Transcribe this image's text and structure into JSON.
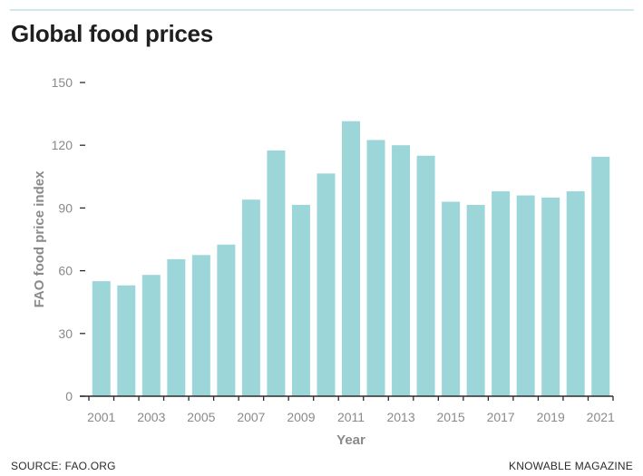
{
  "page": {
    "title": "Global food prices",
    "source": "SOURCE: FAO.ORG",
    "credit": "KNOWABLE MAGAZINE"
  },
  "colors": {
    "bar": "#9dd6d9",
    "axis": "#2b2b2b",
    "tick_text": "#8a8a8a",
    "label_text": "#8a8a8a",
    "rule": "#cfe9eb"
  },
  "chart_data": {
    "type": "bar",
    "title": "Global food prices",
    "xlabel": "Year",
    "ylabel": "FAO food price index",
    "ylim": [
      0,
      150
    ],
    "yticks": [
      0,
      30,
      60,
      90,
      120,
      150
    ],
    "grid": false,
    "categories": [
      "2001",
      "2002",
      "2003",
      "2004",
      "2005",
      "2006",
      "2007",
      "2008",
      "2009",
      "2010",
      "2011",
      "2012",
      "2013",
      "2014",
      "2015",
      "2016",
      "2017",
      "2018",
      "2019",
      "2020",
      "2021"
    ],
    "tick_labels_shown": [
      "2001",
      "2003",
      "2005",
      "2007",
      "2009",
      "2011",
      "2013",
      "2015",
      "2017",
      "2019",
      "2021"
    ],
    "values": [
      55,
      53,
      58,
      65.5,
      67.5,
      72.5,
      94,
      117.5,
      91.5,
      106.5,
      131.5,
      122.5,
      120,
      115,
      93,
      91.5,
      98,
      96,
      95,
      98,
      114.5
    ]
  }
}
